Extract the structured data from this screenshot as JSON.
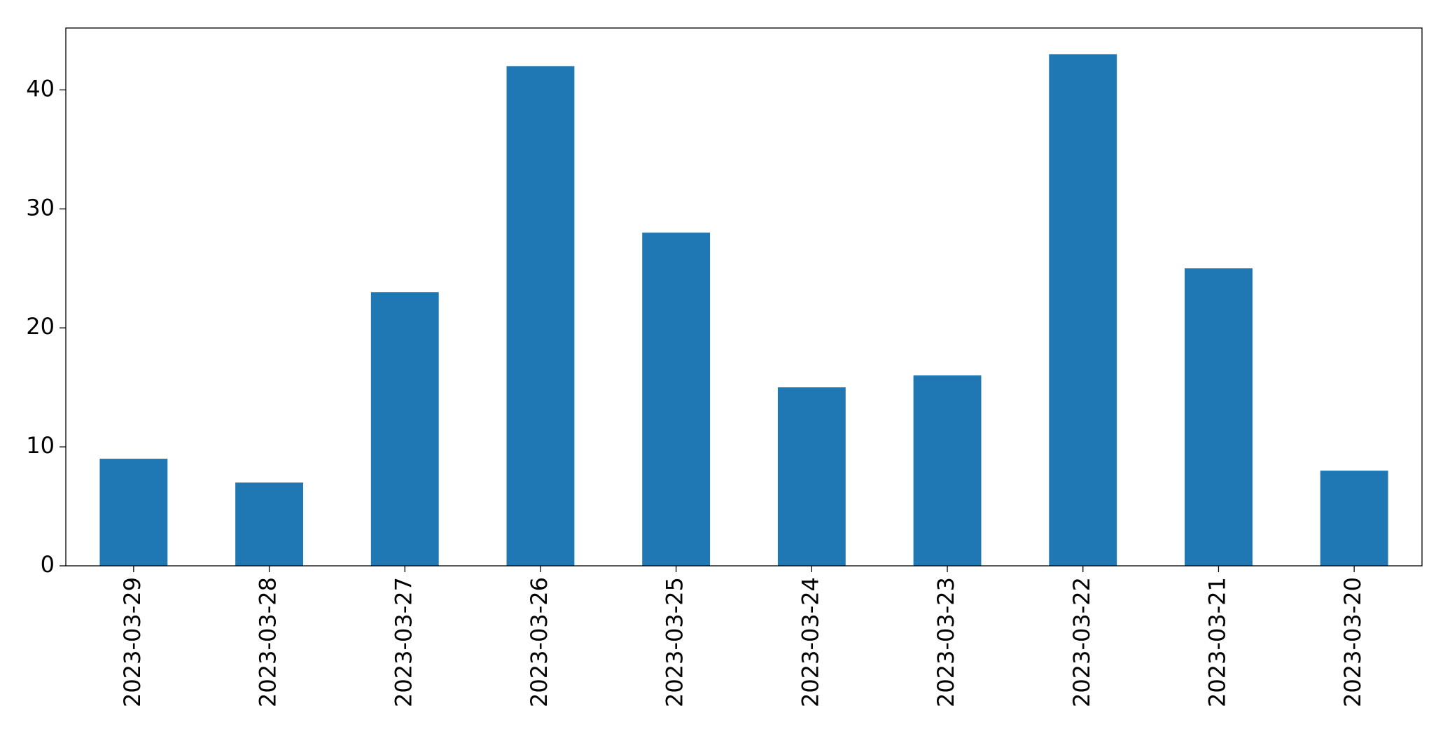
{
  "chart_data": {
    "type": "bar",
    "categories": [
      "2023-03-29",
      "2023-03-28",
      "2023-03-27",
      "2023-03-26",
      "2023-03-25",
      "2023-03-24",
      "2023-03-23",
      "2023-03-22",
      "2023-03-21",
      "2023-03-20"
    ],
    "values": [
      9,
      7,
      23,
      42,
      28,
      15,
      16,
      43,
      25,
      8
    ],
    "color": "#1f77b4",
    "ylim": [
      0,
      45.2
    ],
    "yticks": [
      0,
      10,
      20,
      30,
      40
    ],
    "grid": false
  }
}
